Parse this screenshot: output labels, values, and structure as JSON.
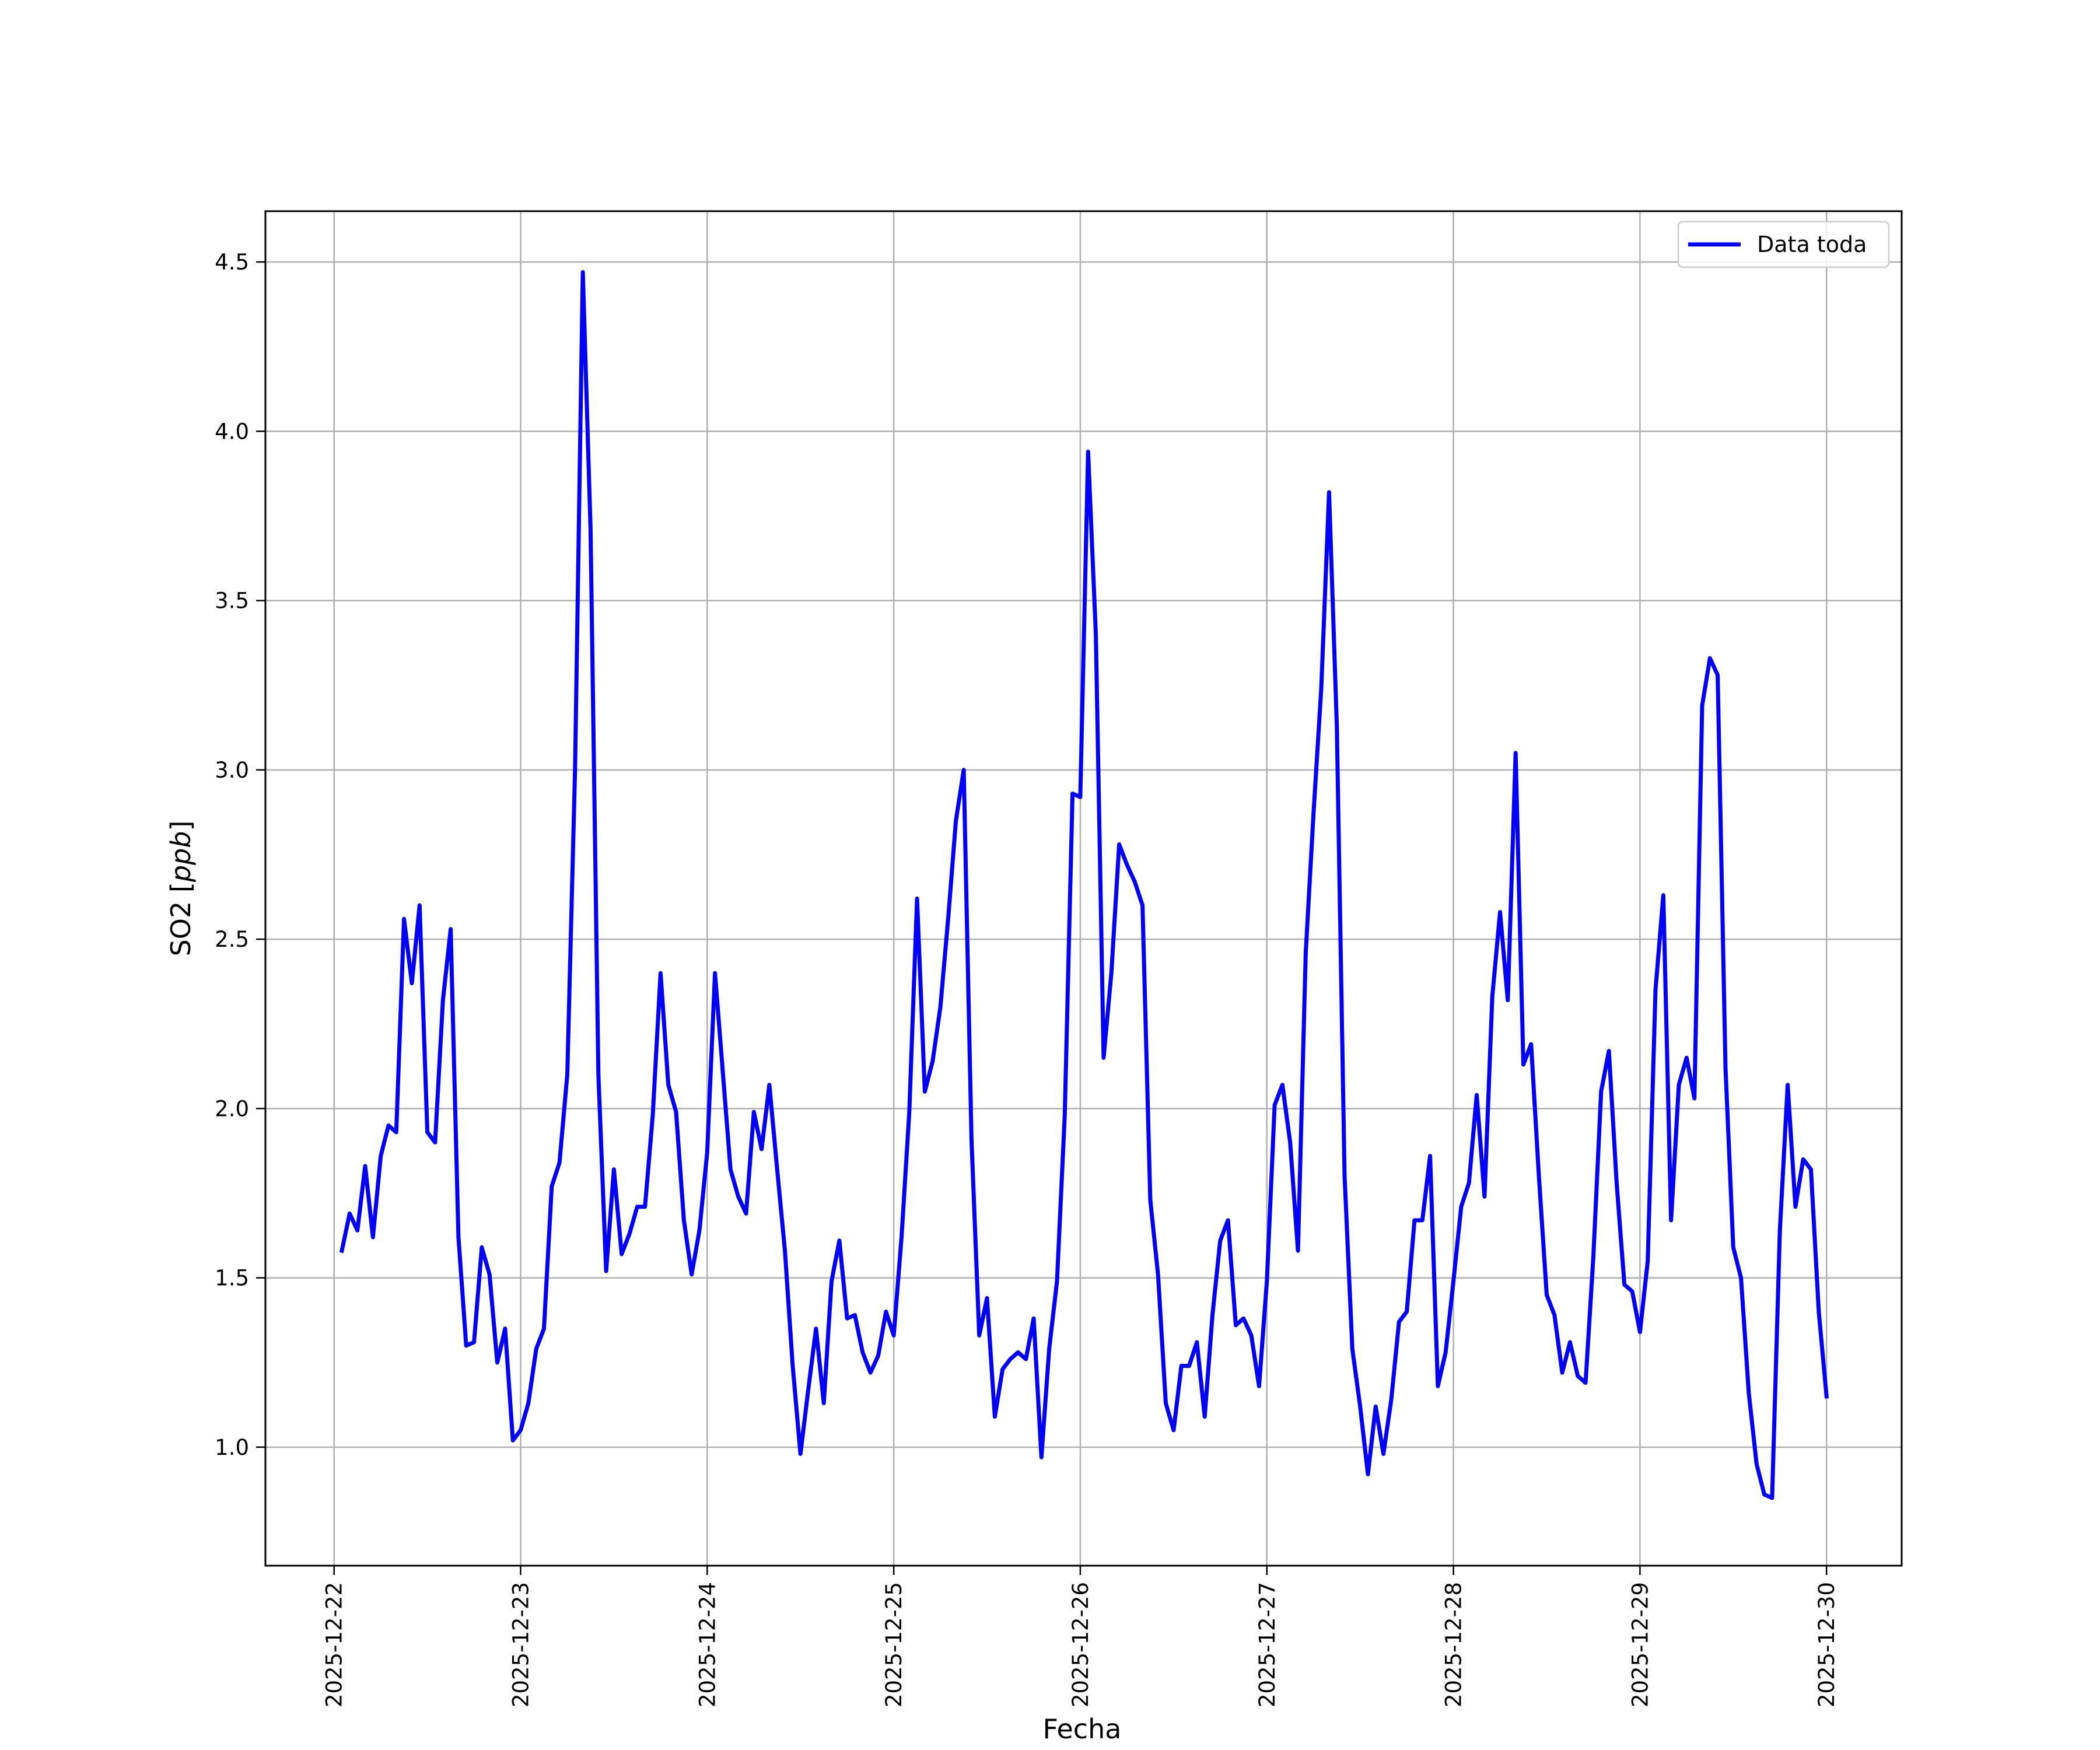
{
  "chart_data": {
    "type": "line",
    "xlabel": "Fecha",
    "ylabel_main": "SO2 [",
    "ylabel_unit": "ppb",
    "ylabel_close": "]",
    "x_tick_labels": [
      "2025-12-22",
      "2025-12-23",
      "2025-12-24",
      "2025-12-25",
      "2025-12-26",
      "2025-12-27",
      "2025-12-28",
      "2025-12-29",
      "2025-12-30"
    ],
    "y_ticks": [
      1.0,
      1.5,
      2.0,
      2.5,
      3.0,
      3.5,
      4.0,
      4.5
    ],
    "y_tick_labels": [
      "1.0",
      "1.5",
      "2.0",
      "2.5",
      "3.0",
      "3.5",
      "4.0",
      "4.5"
    ],
    "xlim": [
      "2025-12-21 15:10",
      "2025-12-30 09:40"
    ],
    "ylim": [
      0.65,
      4.65
    ],
    "grid": true,
    "legend_position": "top-right",
    "series": [
      {
        "name": "Data toda",
        "color": "#0000ff",
        "x": [
          "2025-12-22 01:00",
          "2025-12-22 02:00",
          "2025-12-22 03:00",
          "2025-12-22 04:00",
          "2025-12-22 05:00",
          "2025-12-22 06:00",
          "2025-12-22 07:00",
          "2025-12-22 08:00",
          "2025-12-22 09:00",
          "2025-12-22 10:00",
          "2025-12-22 11:00",
          "2025-12-22 12:00",
          "2025-12-22 13:00",
          "2025-12-22 14:00",
          "2025-12-22 15:00",
          "2025-12-22 16:00",
          "2025-12-22 17:00",
          "2025-12-22 18:00",
          "2025-12-22 19:00",
          "2025-12-22 20:00",
          "2025-12-22 21:00",
          "2025-12-22 22:00",
          "2025-12-22 23:00",
          "2025-12-23 00:00",
          "2025-12-23 01:00",
          "2025-12-23 02:00",
          "2025-12-23 03:00",
          "2025-12-23 04:00",
          "2025-12-23 05:00",
          "2025-12-23 06:00",
          "2025-12-23 07:00",
          "2025-12-23 08:00",
          "2025-12-23 09:00",
          "2025-12-23 10:00",
          "2025-12-23 11:00",
          "2025-12-23 12:00",
          "2025-12-23 13:00",
          "2025-12-23 14:00",
          "2025-12-23 15:00",
          "2025-12-23 16:00",
          "2025-12-23 17:00",
          "2025-12-23 18:00",
          "2025-12-23 19:00",
          "2025-12-23 20:00",
          "2025-12-23 21:00",
          "2025-12-23 22:00",
          "2025-12-23 23:00",
          "2025-12-24 00:00",
          "2025-12-24 01:00",
          "2025-12-24 02:00",
          "2025-12-24 03:00",
          "2025-12-24 04:00",
          "2025-12-24 05:00",
          "2025-12-24 06:00",
          "2025-12-24 07:00",
          "2025-12-24 08:00",
          "2025-12-24 09:00",
          "2025-12-24 10:00",
          "2025-12-24 11:00",
          "2025-12-24 12:00",
          "2025-12-24 13:00",
          "2025-12-24 14:00",
          "2025-12-24 15:00",
          "2025-12-24 16:00",
          "2025-12-24 17:00",
          "2025-12-24 18:00",
          "2025-12-24 19:00",
          "2025-12-24 20:00",
          "2025-12-24 21:00",
          "2025-12-24 22:00",
          "2025-12-24 23:00",
          "2025-12-25 00:00",
          "2025-12-25 01:00",
          "2025-12-25 02:00",
          "2025-12-25 03:00",
          "2025-12-25 04:00",
          "2025-12-25 05:00",
          "2025-12-25 06:00",
          "2025-12-25 07:00",
          "2025-12-25 08:00",
          "2025-12-25 09:00",
          "2025-12-25 10:00",
          "2025-12-25 11:00",
          "2025-12-25 12:00",
          "2025-12-25 13:00",
          "2025-12-25 14:00",
          "2025-12-25 15:00",
          "2025-12-25 16:00",
          "2025-12-25 17:00",
          "2025-12-25 18:00",
          "2025-12-25 19:00",
          "2025-12-25 20:00",
          "2025-12-25 21:00",
          "2025-12-25 22:00",
          "2025-12-25 23:00",
          "2025-12-26 00:00",
          "2025-12-26 01:00",
          "2025-12-26 02:00",
          "2025-12-26 03:00",
          "2025-12-26 04:00",
          "2025-12-26 05:00",
          "2025-12-26 06:00",
          "2025-12-26 07:00",
          "2025-12-26 08:00",
          "2025-12-26 09:00",
          "2025-12-26 10:00",
          "2025-12-26 11:00",
          "2025-12-26 12:00",
          "2025-12-26 13:00",
          "2025-12-26 14:00",
          "2025-12-26 15:00",
          "2025-12-26 16:00",
          "2025-12-26 17:00",
          "2025-12-26 18:00",
          "2025-12-26 19:00",
          "2025-12-26 20:00",
          "2025-12-26 21:00",
          "2025-12-26 22:00",
          "2025-12-26 23:00",
          "2025-12-27 00:00",
          "2025-12-27 01:00",
          "2025-12-27 02:00",
          "2025-12-27 03:00",
          "2025-12-27 04:00",
          "2025-12-27 05:00",
          "2025-12-27 06:00",
          "2025-12-27 07:00",
          "2025-12-27 08:00",
          "2025-12-27 09:00",
          "2025-12-27 10:00",
          "2025-12-27 11:00",
          "2025-12-27 12:00",
          "2025-12-27 13:00",
          "2025-12-27 14:00",
          "2025-12-27 15:00",
          "2025-12-27 16:00",
          "2025-12-27 17:00",
          "2025-12-27 18:00",
          "2025-12-27 19:00",
          "2025-12-27 20:00",
          "2025-12-27 21:00",
          "2025-12-27 22:00",
          "2025-12-27 23:00",
          "2025-12-28 00:00",
          "2025-12-28 01:00",
          "2025-12-28 02:00",
          "2025-12-28 03:00",
          "2025-12-28 04:00",
          "2025-12-28 05:00",
          "2025-12-28 06:00",
          "2025-12-28 07:00",
          "2025-12-28 08:00",
          "2025-12-28 09:00",
          "2025-12-28 10:00",
          "2025-12-28 11:00",
          "2025-12-28 12:00",
          "2025-12-28 13:00",
          "2025-12-28 14:00",
          "2025-12-28 15:00",
          "2025-12-28 16:00",
          "2025-12-28 17:00",
          "2025-12-28 18:00",
          "2025-12-28 19:00",
          "2025-12-28 20:00",
          "2025-12-28 21:00",
          "2025-12-28 22:00",
          "2025-12-28 23:00",
          "2025-12-29 00:00",
          "2025-12-29 01:00",
          "2025-12-29 02:00",
          "2025-12-29 03:00",
          "2025-12-29 04:00",
          "2025-12-29 05:00",
          "2025-12-29 06:00",
          "2025-12-29 07:00",
          "2025-12-29 08:00",
          "2025-12-29 09:00",
          "2025-12-29 10:00",
          "2025-12-29 11:00",
          "2025-12-29 12:00",
          "2025-12-29 13:00",
          "2025-12-29 14:00",
          "2025-12-29 15:00",
          "2025-12-29 16:00",
          "2025-12-29 17:00",
          "2025-12-29 18:00",
          "2025-12-29 19:00",
          "2025-12-29 20:00",
          "2025-12-29 21:00",
          "2025-12-29 22:00",
          "2025-12-29 23:00",
          "2025-12-30 00:00"
        ],
        "y": [
          1.58,
          1.69,
          1.64,
          1.83,
          1.62,
          1.86,
          1.95,
          1.93,
          2.56,
          2.37,
          2.6,
          1.93,
          1.9,
          2.32,
          2.53,
          1.62,
          1.3,
          1.31,
          1.59,
          1.51,
          1.25,
          1.35,
          1.02,
          1.05,
          1.13,
          1.29,
          1.35,
          1.77,
          1.84,
          2.1,
          3.0,
          4.47,
          3.71,
          2.1,
          1.52,
          1.82,
          1.57,
          1.63,
          1.71,
          1.71,
          1.98,
          2.4,
          2.07,
          1.99,
          1.67,
          1.51,
          1.64,
          1.87,
          2.4,
          2.11,
          1.82,
          1.74,
          1.69,
          1.99,
          1.88,
          2.07,
          1.82,
          1.58,
          1.24,
          0.98,
          1.17,
          1.35,
          1.13,
          1.49,
          1.61,
          1.38,
          1.39,
          1.28,
          1.22,
          1.27,
          1.4,
          1.33,
          1.62,
          1.99,
          2.62,
          2.05,
          2.14,
          2.3,
          2.56,
          2.85,
          3.0,
          1.91,
          1.33,
          1.44,
          1.09,
          1.23,
          1.26,
          1.28,
          1.26,
          1.38,
          0.97,
          1.29,
          1.49,
          1.98,
          2.93,
          2.92,
          3.94,
          3.4,
          2.15,
          2.4,
          2.78,
          2.72,
          2.67,
          2.6,
          1.73,
          1.51,
          1.13,
          1.05,
          1.24,
          1.24,
          1.31,
          1.09,
          1.39,
          1.61,
          1.67,
          1.36,
          1.38,
          1.33,
          1.18,
          1.49,
          2.01,
          2.07,
          1.9,
          1.58,
          2.46,
          2.87,
          3.24,
          3.82,
          3.13,
          1.8,
          1.29,
          1.12,
          0.92,
          1.12,
          0.98,
          1.14,
          1.37,
          1.4,
          1.67,
          1.67,
          1.86,
          1.18,
          1.28,
          1.49,
          1.71,
          1.78,
          2.04,
          1.74,
          2.33,
          2.58,
          2.32,
          3.05,
          2.13,
          2.19,
          1.8,
          1.45,
          1.39,
          1.22,
          1.31,
          1.21,
          1.19,
          1.56,
          2.05,
          2.17,
          1.78,
          1.48,
          1.46,
          1.34,
          1.55,
          2.35,
          2.63,
          1.67,
          2.07,
          2.15,
          2.03,
          3.19,
          3.33,
          3.28,
          2.12,
          1.59,
          1.5,
          1.16,
          0.95,
          0.86,
          0.85,
          1.64,
          2.07,
          1.71,
          1.85,
          1.82,
          1.4,
          1.15
        ]
      }
    ]
  }
}
